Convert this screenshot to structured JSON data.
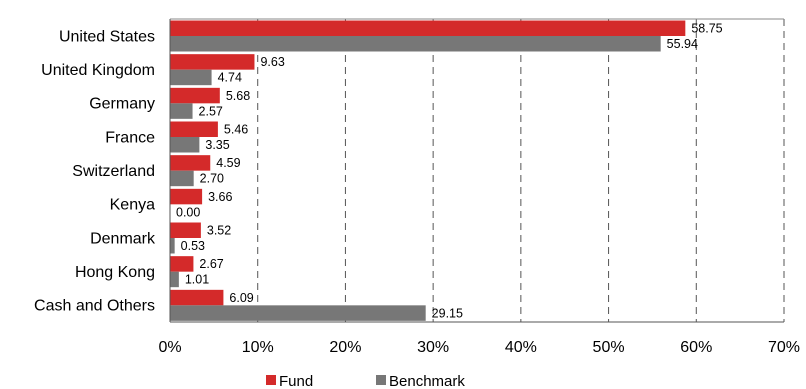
{
  "chart_data": {
    "type": "bar",
    "orientation": "horizontal",
    "categories": [
      "United States",
      "United Kingdom",
      "Germany",
      "France",
      "Switzerland",
      "Kenya",
      "Denmark",
      "Hong Kong",
      "Cash and Others"
    ],
    "series": [
      {
        "name": "Fund",
        "color": "#d42a2a",
        "values": [
          58.75,
          9.63,
          5.68,
          5.46,
          4.59,
          3.66,
          3.52,
          2.67,
          6.09
        ],
        "labels": [
          "58.75",
          "9.63",
          "5.68",
          "5.46",
          "4.59",
          "3.66",
          "3.52",
          "2.67",
          "6.09"
        ]
      },
      {
        "name": "Benchmark",
        "color": "#777777",
        "values": [
          55.94,
          4.74,
          2.57,
          3.35,
          2.7,
          0.0,
          0.53,
          1.01,
          29.15
        ],
        "labels": [
          "55.94",
          "4.74",
          "2.57",
          "3.35",
          "2.70",
          "0.00",
          "0.53",
          "1.01",
          "29.15"
        ]
      }
    ],
    "xlim": [
      0,
      70
    ],
    "xticks": [
      0,
      10,
      20,
      30,
      40,
      50,
      60,
      70
    ],
    "xtick_labels": [
      "0%",
      "10%",
      "20%",
      "30%",
      "40%",
      "50%",
      "60%",
      "70%"
    ],
    "grid": "vertical dashed",
    "legend_position": "bottom",
    "title": "",
    "xlabel": "",
    "ylabel": ""
  }
}
